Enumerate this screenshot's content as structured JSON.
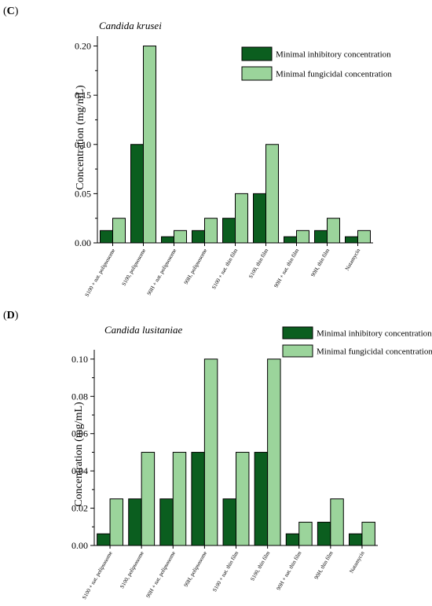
{
  "colors": {
    "mic": "#0b5e1f",
    "mfc": "#9bd49b",
    "edge": "#000000"
  },
  "chart_data": [
    {
      "panel_label_open": "(",
      "panel_label_letter": "C",
      "panel_label_close": ")",
      "type": "bar",
      "title": "Candida krusei",
      "ylabel": "Concentration (mg/mL)",
      "xlabel": "",
      "ylim": [
        0,
        0.21
      ],
      "yticks": [
        "0.00",
        "0.05",
        "0.10",
        "0.15",
        "0.20"
      ],
      "ytick_values": [
        0,
        0.05,
        0.1,
        0.15,
        0.2
      ],
      "legend_position": "top-right",
      "categories": [
        "S100 + nat. polipsosome",
        "S100, polipsosome",
        "90H + nat. polipsosome",
        "90H, polipsosome",
        "S100 + nat. thin film",
        "S100, thin film",
        "90H + nat. thin film",
        "90H, thin film",
        "Natamycin"
      ],
      "series": [
        {
          "name": "Minimal inhibitory concentration",
          "values": [
            0.0125,
            0.1,
            0.00625,
            0.0125,
            0.025,
            0.05,
            0.00625,
            0.0125,
            0.00625
          ]
        },
        {
          "name": "Minimal fungicidal concentration",
          "values": [
            0.025,
            0.2,
            0.0125,
            0.025,
            0.05,
            0.1,
            0.0125,
            0.025,
            0.0125
          ]
        }
      ]
    },
    {
      "panel_label_open": "(",
      "panel_label_letter": "D",
      "panel_label_close": ")",
      "type": "bar",
      "title": "Candida lusitaniae",
      "ylabel": "Concentration (mg/mL)",
      "xlabel": "",
      "ylim": [
        0,
        0.105
      ],
      "yticks": [
        "0.00",
        "0.02",
        "0.04",
        "0.06",
        "0.08",
        "0.10"
      ],
      "ytick_values": [
        0,
        0.02,
        0.04,
        0.06,
        0.08,
        0.1
      ],
      "legend_position": "top-right",
      "categories": [
        "S100 + nat. polipsosome",
        "S100, polipsosome",
        "90H + nat. polipsosome",
        "90H, polipsosome",
        "S100 + nat. thin film",
        "S100, thin film",
        "90H + nat. thin film",
        "90H, thin film",
        "Natamycin"
      ],
      "series": [
        {
          "name": "Minimal inhibitory concentration",
          "values": [
            0.00625,
            0.025,
            0.025,
            0.05,
            0.025,
            0.05,
            0.00625,
            0.0125,
            0.00625
          ]
        },
        {
          "name": "Minimal fungicidal concentration",
          "values": [
            0.025,
            0.05,
            0.05,
            0.1,
            0.05,
            0.1,
            0.0125,
            0.025,
            0.0125
          ]
        }
      ]
    }
  ]
}
